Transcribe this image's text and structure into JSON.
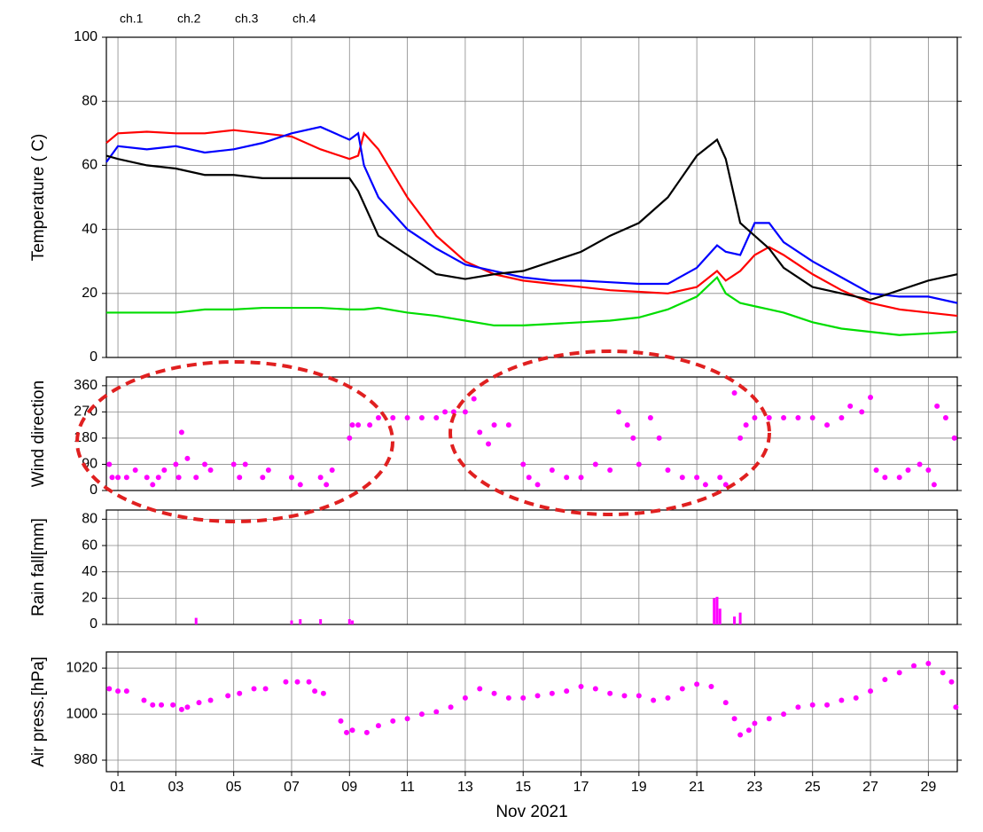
{
  "chart_data": [
    {
      "type": "line",
      "ylabel": "Temperature ( C)",
      "legend": "top-left",
      "grid": true,
      "xlim": [
        0.6,
        30
      ],
      "ylim": [
        0,
        100
      ],
      "yticks": [
        0,
        20,
        40,
        60,
        80,
        100
      ],
      "x": [
        0.6,
        1,
        2,
        3,
        4,
        5,
        6,
        7,
        8,
        9,
        9.3,
        9.5,
        10,
        11,
        12,
        13,
        14,
        15,
        16,
        17,
        18,
        19,
        20,
        21,
        21.7,
        22,
        22.5,
        23,
        23.5,
        24,
        25,
        26,
        27,
        28,
        29,
        30
      ],
      "series": [
        {
          "name": "ch.1",
          "color": "#ff0000",
          "values": [
            67,
            70,
            70.5,
            70,
            70,
            71,
            70,
            69,
            65,
            62,
            63,
            70,
            65,
            50,
            38,
            30,
            26,
            24,
            23,
            22,
            21,
            20.5,
            20,
            22,
            27,
            24,
            27,
            32,
            34.5,
            32,
            26,
            21,
            17,
            15,
            14,
            13
          ]
        },
        {
          "name": "ch.2",
          "color": "#0000ff",
          "values": [
            61,
            66,
            65,
            66,
            64,
            65,
            67,
            70,
            72,
            68,
            70,
            60,
            50,
            40,
            34,
            29,
            27,
            25,
            24,
            24,
            23.5,
            23,
            23,
            28,
            35,
            33,
            32,
            42,
            42,
            36,
            30,
            25,
            20,
            19,
            19,
            17
          ]
        },
        {
          "name": "ch.3",
          "color": "#00dd00",
          "values": [
            14,
            14,
            14,
            14,
            15,
            15,
            15.5,
            15.5,
            15.5,
            15,
            15,
            15,
            15.5,
            14,
            13,
            11.5,
            10,
            10,
            10.5,
            11,
            11.5,
            12.5,
            15,
            19,
            25,
            20,
            17,
            16,
            15,
            14,
            11,
            9,
            8,
            7,
            7.5,
            8
          ]
        },
        {
          "name": "ch.4",
          "color": "#000000",
          "values": [
            63,
            62,
            60,
            59,
            57,
            57,
            56,
            56,
            56,
            56,
            52,
            48,
            38,
            32,
            26,
            24.5,
            26,
            27,
            30,
            33,
            38,
            42,
            50,
            63,
            68,
            62,
            42,
            38,
            34,
            28,
            22,
            20,
            18,
            21,
            24,
            26
          ]
        }
      ]
    },
    {
      "type": "scatter",
      "ylabel": "Wind direction",
      "grid": true,
      "color": "#ff00ff",
      "xlim": [
        0.6,
        30
      ],
      "ylim": [
        0,
        390
      ],
      "yticks": [
        0,
        90,
        180,
        270,
        360
      ],
      "x": [
        0.7,
        0.8,
        1,
        1.3,
        1.6,
        2,
        2.2,
        2.4,
        2.6,
        3,
        3.1,
        3.2,
        3.4,
        3.7,
        4,
        4.2,
        5,
        5.2,
        5.4,
        6,
        6.2,
        7,
        7.3,
        8,
        8.2,
        8.4,
        9,
        9.1,
        9.3,
        9.7,
        10,
        10.5,
        11,
        11.5,
        12,
        12.3,
        12.6,
        13,
        13.3,
        13.5,
        13.8,
        14,
        14.5,
        15,
        15.2,
        15.5,
        16,
        16.5,
        17,
        17.5,
        18,
        18.3,
        18.6,
        18.8,
        19,
        19.4,
        19.7,
        20,
        20.5,
        21,
        21.3,
        21.8,
        22,
        22.3,
        22.5,
        22.7,
        23,
        23.5,
        24,
        24.5,
        25,
        25.5,
        26,
        26.3,
        26.7,
        27,
        27.2,
        27.5,
        28,
        28.3,
        28.7,
        29,
        29.2,
        29.3,
        29.6,
        29.9
      ],
      "values": [
        90,
        45,
        45,
        45,
        70,
        45,
        20,
        45,
        70,
        90,
        45,
        200,
        110,
        45,
        90,
        70,
        90,
        45,
        90,
        45,
        70,
        45,
        20,
        45,
        20,
        70,
        180,
        225,
        225,
        225,
        250,
        250,
        250,
        250,
        250,
        270,
        270,
        270,
        315,
        200,
        160,
        225,
        225,
        90,
        45,
        20,
        70,
        45,
        45,
        90,
        70,
        270,
        225,
        180,
        90,
        250,
        180,
        70,
        45,
        45,
        20,
        45,
        20,
        335,
        180,
        225,
        250,
        250,
        250,
        250,
        250,
        225,
        250,
        290,
        270,
        320,
        70,
        45,
        45,
        70,
        90,
        70,
        20,
        290,
        250,
        180
      ]
    },
    {
      "type": "bar",
      "ylabel": "Rain fall[mm]",
      "grid": true,
      "color": "#ff00ff",
      "xlim": [
        0.6,
        30
      ],
      "ylim": [
        0,
        87
      ],
      "yticks": [
        0,
        20,
        40,
        60,
        80
      ],
      "x": [
        3.7,
        7,
        7.3,
        8,
        9,
        9.1,
        21.6,
        21.7,
        21.8,
        22.3,
        22.5
      ],
      "values": [
        5,
        3,
        4,
        4,
        4,
        3,
        20,
        21,
        12,
        6,
        9
      ]
    },
    {
      "type": "scatter",
      "ylabel": "Air press.[hPa]",
      "xlabel": "Nov 2021",
      "grid": true,
      "color": "#ff00ff",
      "xlim": [
        0.6,
        30
      ],
      "ylim": [
        975,
        1027
      ],
      "yticks": [
        980,
        1000,
        1020
      ],
      "xticks": [
        {
          "value": 1,
          "label": "01"
        },
        {
          "value": 3,
          "label": "03"
        },
        {
          "value": 5,
          "label": "05"
        },
        {
          "value": 7,
          "label": "07"
        },
        {
          "value": 9,
          "label": "09"
        },
        {
          "value": 11,
          "label": "11"
        },
        {
          "value": 13,
          "label": "13"
        },
        {
          "value": 15,
          "label": "15"
        },
        {
          "value": 17,
          "label": "17"
        },
        {
          "value": 19,
          "label": "19"
        },
        {
          "value": 21,
          "label": "21"
        },
        {
          "value": 23,
          "label": "23"
        },
        {
          "value": 25,
          "label": "25"
        },
        {
          "value": 27,
          "label": "27"
        },
        {
          "value": 29,
          "label": "29"
        }
      ],
      "x": [
        0.7,
        1,
        1.3,
        1.9,
        2.2,
        2.5,
        2.9,
        3.2,
        3.4,
        3.8,
        4.2,
        4.8,
        5.2,
        5.7,
        6.1,
        6.8,
        7.2,
        7.6,
        7.8,
        8.1,
        8.7,
        8.9,
        9.1,
        9.6,
        10,
        10.5,
        11,
        11.5,
        12,
        12.5,
        13,
        13.5,
        14,
        14.5,
        15,
        15.5,
        16,
        16.5,
        17,
        17.5,
        18,
        18.5,
        19,
        19.5,
        20,
        20.5,
        21,
        21.5,
        22,
        22.3,
        22.5,
        22.8,
        23,
        23.5,
        24,
        24.5,
        25,
        25.5,
        26,
        26.5,
        27,
        27.5,
        28,
        28.5,
        29,
        29.5,
        29.8,
        29.95
      ],
      "values": [
        1011,
        1010,
        1010,
        1006,
        1004,
        1004,
        1004,
        1002,
        1003,
        1005,
        1006,
        1008,
        1009,
        1011,
        1011,
        1014,
        1014,
        1014,
        1010,
        1009,
        997,
        992,
        993,
        992,
        995,
        997,
        998,
        1000,
        1001,
        1003,
        1007,
        1011,
        1009,
        1007,
        1007,
        1008,
        1009,
        1010,
        1012,
        1011,
        1009,
        1008,
        1008,
        1006,
        1007,
        1011,
        1013,
        1012,
        1005,
        998,
        991,
        993,
        996,
        998,
        1000,
        1003,
        1004,
        1004,
        1006,
        1007,
        1010,
        1015,
        1018,
        1021,
        1022,
        1018,
        1014,
        1003
      ]
    }
  ]
}
